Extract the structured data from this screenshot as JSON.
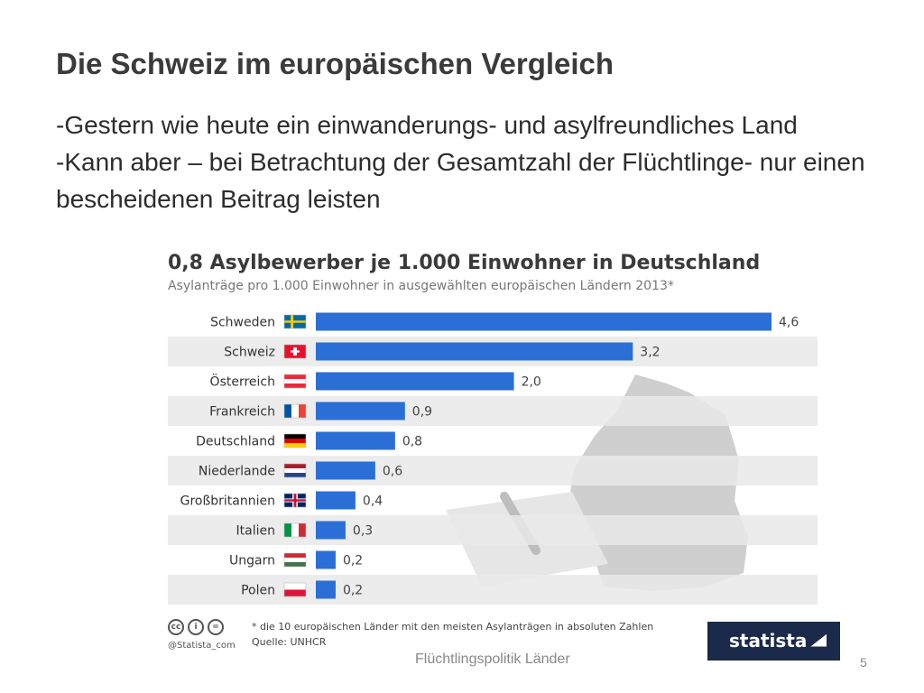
{
  "slide": {
    "title": "Die Schweiz im europäischen Vergleich",
    "bullets": [
      "-Gestern wie heute ein einwanderungs- und asylfreundliches Land",
      "-Kann aber – bei Betrachtung der Gesamtzahl der Flüchtlinge-  nur einen bescheidenen Beitrag leisten"
    ],
    "footer": "Flüchtlingspolitik Länder",
    "page_number": "5"
  },
  "infographic": {
    "credit": "@Statista_com",
    "footnote": "* die 10 europäischen Länder mit den meisten Asylanträgen in absoluten Zahlen",
    "source": "Quelle: UNHCR",
    "logo": "statista",
    "cc_icons": [
      "cc-icon",
      "by-icon",
      "nd-icon"
    ]
  },
  "chart_data": {
    "type": "bar",
    "orientation": "horizontal",
    "title": "0,8 Asylbewerber je 1.000 Einwohner in Deutschland",
    "subtitle": "Asylanträge pro 1.000 Einwohner in ausgewählten europäischen Ländern 2013*",
    "categories": [
      "Schweden",
      "Schweiz",
      "Österreich",
      "Frankreich",
      "Deutschland",
      "Niederlande",
      "Großbritannien",
      "Italien",
      "Ungarn",
      "Polen"
    ],
    "values": [
      4.6,
      3.2,
      2.0,
      0.9,
      0.8,
      0.6,
      0.4,
      0.3,
      0.2,
      0.2
    ],
    "value_labels": [
      "4,6",
      "3,2",
      "2,0",
      "0,9",
      "0,8",
      "0,6",
      "0,4",
      "0,3",
      "0,2",
      "0,2"
    ],
    "flags": [
      "sweden-flag",
      "switzerland-flag",
      "austria-flag",
      "france-flag",
      "germany-flag",
      "netherlands-flag",
      "uk-flag",
      "italy-flag",
      "hungary-flag",
      "poland-flag"
    ],
    "xlim": [
      0,
      4.6
    ],
    "bar_color": "#2b6fd6",
    "grid": false,
    "legend": "none"
  }
}
